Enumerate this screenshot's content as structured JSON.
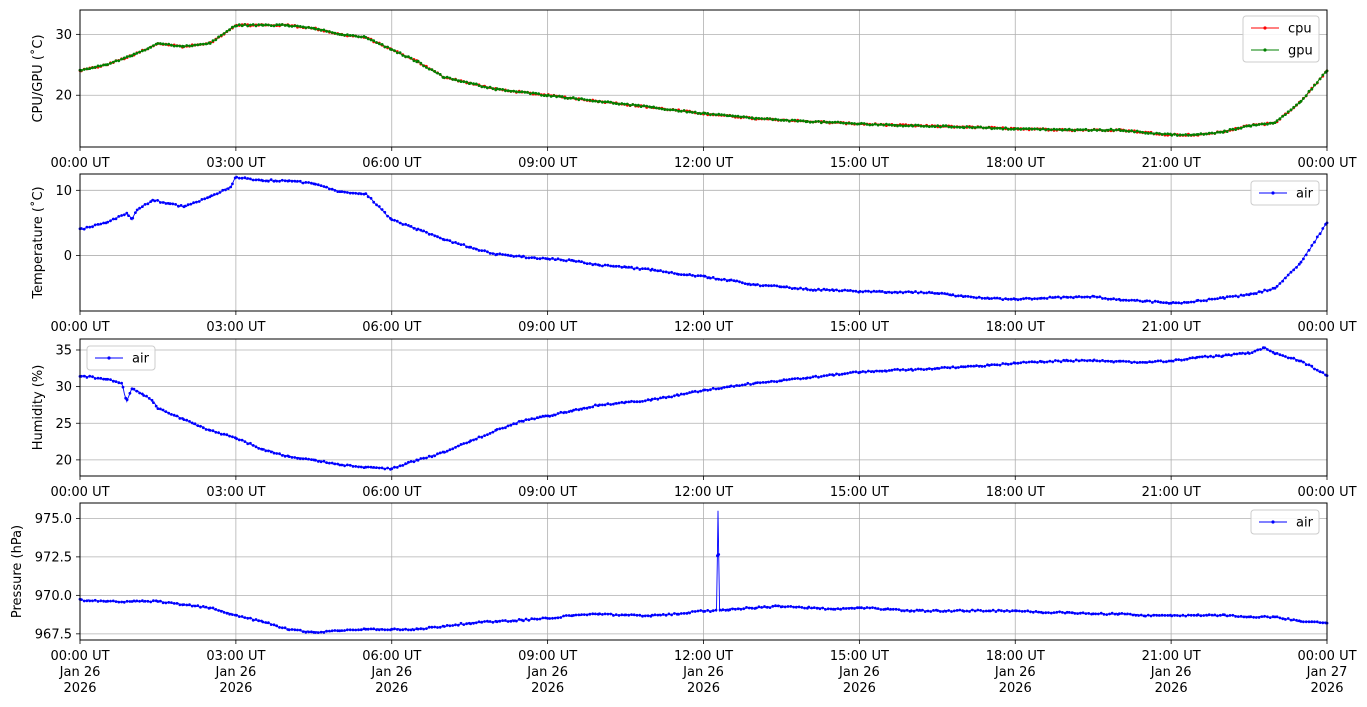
{
  "chart_data": [
    {
      "type": "line",
      "ylabel": "CPU/GPU (˚C)",
      "ylim": [
        11.5,
        34
      ],
      "yticks": [
        20,
        30
      ],
      "xlim": [
        "00:00 UT",
        "24:00 UT"
      ],
      "xtick_labels": [
        "00:00 UT",
        "03:00 UT",
        "06:00 UT",
        "09:00 UT",
        "12:00 UT",
        "15:00 UT",
        "18:00 UT",
        "21:00 UT",
        "00:00 UT"
      ],
      "grid": true,
      "legend": "top-right",
      "series": [
        {
          "name": "cpu",
          "color": "#ff0000",
          "x": [
            0,
            0.5,
            1,
            1.5,
            2,
            2.5,
            3,
            3.5,
            4,
            4.5,
            5,
            5.5,
            6,
            6.5,
            7,
            7.5,
            8,
            9,
            10,
            11,
            12,
            13,
            14,
            15,
            16,
            17,
            18,
            19,
            20,
            21,
            21.5,
            22,
            22.5,
            23,
            23.5,
            24
          ],
          "y": [
            24,
            25,
            26.5,
            28.5,
            28,
            28.5,
            31.5,
            31.5,
            31.5,
            31,
            30,
            29.5,
            27.5,
            25.5,
            23,
            22,
            21,
            20,
            19,
            18,
            17,
            16.2,
            15.7,
            15.3,
            15,
            14.8,
            14.5,
            14.3,
            14.3,
            13.5,
            13.5,
            14,
            15,
            15.5,
            19,
            24
          ]
        },
        {
          "name": "gpu",
          "color": "#008000",
          "x": [
            0,
            0.5,
            1,
            1.5,
            2,
            2.5,
            3,
            3.5,
            4,
            4.5,
            5,
            5.5,
            6,
            6.5,
            7,
            7.5,
            8,
            9,
            10,
            11,
            12,
            13,
            14,
            15,
            16,
            17,
            18,
            19,
            20,
            21,
            21.5,
            22,
            22.5,
            23,
            23.5,
            24
          ],
          "y": [
            24,
            25,
            26.5,
            28.5,
            28,
            28.5,
            31.5,
            31.5,
            31.5,
            31,
            30,
            29.5,
            27.5,
            25.5,
            23,
            22,
            21,
            20,
            19,
            18,
            17,
            16.2,
            15.7,
            15.3,
            15,
            14.8,
            14.5,
            14.3,
            14.3,
            13.5,
            13.5,
            14,
            15,
            15.5,
            19,
            24
          ]
        }
      ]
    },
    {
      "type": "line",
      "ylabel": "Temperature (˚C)",
      "ylim": [
        -8.5,
        12.5
      ],
      "yticks": [
        0,
        10
      ],
      "xtick_labels": [
        "00:00 UT",
        "03:00 UT",
        "06:00 UT",
        "09:00 UT",
        "12:00 UT",
        "15:00 UT",
        "18:00 UT",
        "21:00 UT",
        "00:00 UT"
      ],
      "grid": true,
      "legend": "top-right",
      "series": [
        {
          "name": "air",
          "color": "#0000ff",
          "x": [
            0,
            0.5,
            0.9,
            1,
            1.1,
            1.4,
            1.7,
            2,
            2.5,
            2.9,
            3.0,
            3.5,
            4,
            4.5,
            5,
            5.5,
            6,
            6.5,
            7,
            7.5,
            8,
            8.5,
            9,
            9.5,
            10,
            10.5,
            11,
            11.5,
            12,
            12.5,
            13,
            13.5,
            14,
            14.5,
            15,
            15.5,
            16,
            16.5,
            17,
            17.5,
            18,
            18.5,
            19,
            19.5,
            20,
            20.5,
            21,
            21.3,
            21.5,
            22,
            22.5,
            23,
            23.5,
            24
          ],
          "y": [
            4.0,
            5.0,
            6.5,
            5.5,
            7.0,
            8.5,
            8.0,
            7.5,
            9.0,
            10.5,
            12.0,
            11.5,
            11.5,
            11.0,
            9.8,
            9.5,
            5.5,
            4.0,
            2.5,
            1.3,
            0.2,
            -0.2,
            -0.5,
            -0.8,
            -1.5,
            -1.8,
            -2.2,
            -2.8,
            -3.2,
            -3.8,
            -4.5,
            -4.8,
            -5.2,
            -5.3,
            -5.5,
            -5.6,
            -5.6,
            -5.8,
            -6.3,
            -6.6,
            -6.7,
            -6.5,
            -6.4,
            -6.3,
            -6.8,
            -7.0,
            -7.3,
            -7.2,
            -7.0,
            -6.5,
            -6.0,
            -5.0,
            -1.0,
            5.0
          ]
        }
      ]
    },
    {
      "type": "line",
      "ylabel": "Humidity (%)",
      "ylim": [
        17.8,
        36.5
      ],
      "yticks": [
        20,
        25,
        30,
        35
      ],
      "xtick_labels": [
        "00:00 UT",
        "03:00 UT",
        "06:00 UT",
        "09:00 UT",
        "12:00 UT",
        "15:00 UT",
        "18:00 UT",
        "21:00 UT",
        "00:00 UT"
      ],
      "grid": true,
      "legend": "top-left",
      "series": [
        {
          "name": "air",
          "color": "#0000ff",
          "x": [
            0,
            0.5,
            0.8,
            0.9,
            1.0,
            1.2,
            1.4,
            1.5,
            2,
            2.5,
            3,
            3.5,
            4,
            4.5,
            5,
            5.5,
            6,
            6.5,
            7,
            7.5,
            8,
            8.5,
            9,
            9.5,
            10,
            10.5,
            11,
            11.5,
            12,
            12.5,
            13,
            13.5,
            14,
            14.5,
            15,
            15.5,
            16,
            16.5,
            17,
            17.5,
            18,
            18.5,
            19,
            19.5,
            20,
            20.5,
            21,
            21.5,
            22,
            22.5,
            22.8,
            23,
            23.5,
            24
          ],
          "y": [
            31.5,
            31,
            30.5,
            28,
            29.7,
            29,
            28,
            27,
            25.5,
            24,
            23,
            21.5,
            20.5,
            20,
            19.3,
            19,
            18.8,
            20,
            21,
            22.5,
            24,
            25.3,
            26,
            26.8,
            27.5,
            27.8,
            28.2,
            28.8,
            29.5,
            30,
            30.5,
            30.8,
            31.2,
            31.6,
            32,
            32.2,
            32.3,
            32.5,
            32.7,
            32.9,
            33.2,
            33.4,
            33.5,
            33.6,
            33.4,
            33.3,
            33.5,
            34,
            34.2,
            34.6,
            35.3,
            34.5,
            33.5,
            31.5
          ]
        }
      ]
    },
    {
      "type": "line",
      "ylabel": "Pressure (hPa)",
      "ylim": [
        967.1,
        976.0
      ],
      "yticks": [
        967.5,
        970.0,
        972.5,
        975.0
      ],
      "ytick_labels": [
        "967.5",
        "970.0",
        "972.5",
        "975.0"
      ],
      "xtick_labels": [
        [
          "00:00 UT",
          "Jan 26",
          "2026"
        ],
        [
          "03:00 UT",
          "Jan 26",
          "2026"
        ],
        [
          "06:00 UT",
          "Jan 26",
          "2026"
        ],
        [
          "09:00 UT",
          "Jan 26",
          "2026"
        ],
        [
          "12:00 UT",
          "Jan 26",
          "2026"
        ],
        [
          "15:00 UT",
          "Jan 26",
          "2026"
        ],
        [
          "18:00 UT",
          "Jan 26",
          "2026"
        ],
        [
          "21:00 UT",
          "Jan 26",
          "2026"
        ],
        [
          "00:00 UT",
          "Jan 27",
          "2026"
        ]
      ],
      "grid": true,
      "legend": "top-right",
      "series": [
        {
          "name": "air",
          "color": "#0000ff",
          "x": [
            0,
            0.5,
            1,
            1.5,
            2,
            2.5,
            3,
            3.5,
            4,
            4.5,
            5,
            5.5,
            6,
            6.5,
            7,
            7.5,
            8,
            8.5,
            9,
            9.5,
            10,
            10.5,
            11,
            11.5,
            12,
            12.25,
            12.28,
            12.31,
            12.5,
            13,
            13.5,
            14,
            14.5,
            15,
            15.5,
            16,
            16.5,
            17,
            17.5,
            18,
            18.5,
            19,
            19.5,
            20,
            20.5,
            21,
            21.5,
            22,
            22.5,
            23,
            23.5,
            24
          ],
          "y": [
            969.7,
            969.6,
            969.6,
            969.6,
            969.4,
            969.2,
            968.7,
            968.3,
            967.8,
            967.6,
            967.7,
            967.8,
            967.8,
            967.8,
            968.0,
            968.2,
            968.3,
            968.4,
            968.5,
            968.7,
            968.8,
            968.7,
            968.7,
            968.8,
            969.0,
            969.0,
            975.5,
            969.0,
            969.1,
            969.2,
            969.3,
            969.2,
            969.1,
            969.2,
            969.1,
            969.0,
            969.0,
            969.0,
            969.0,
            969.0,
            968.9,
            968.9,
            968.8,
            968.8,
            968.7,
            968.7,
            968.7,
            968.7,
            968.6,
            968.6,
            968.3,
            968.2
          ]
        }
      ]
    }
  ]
}
